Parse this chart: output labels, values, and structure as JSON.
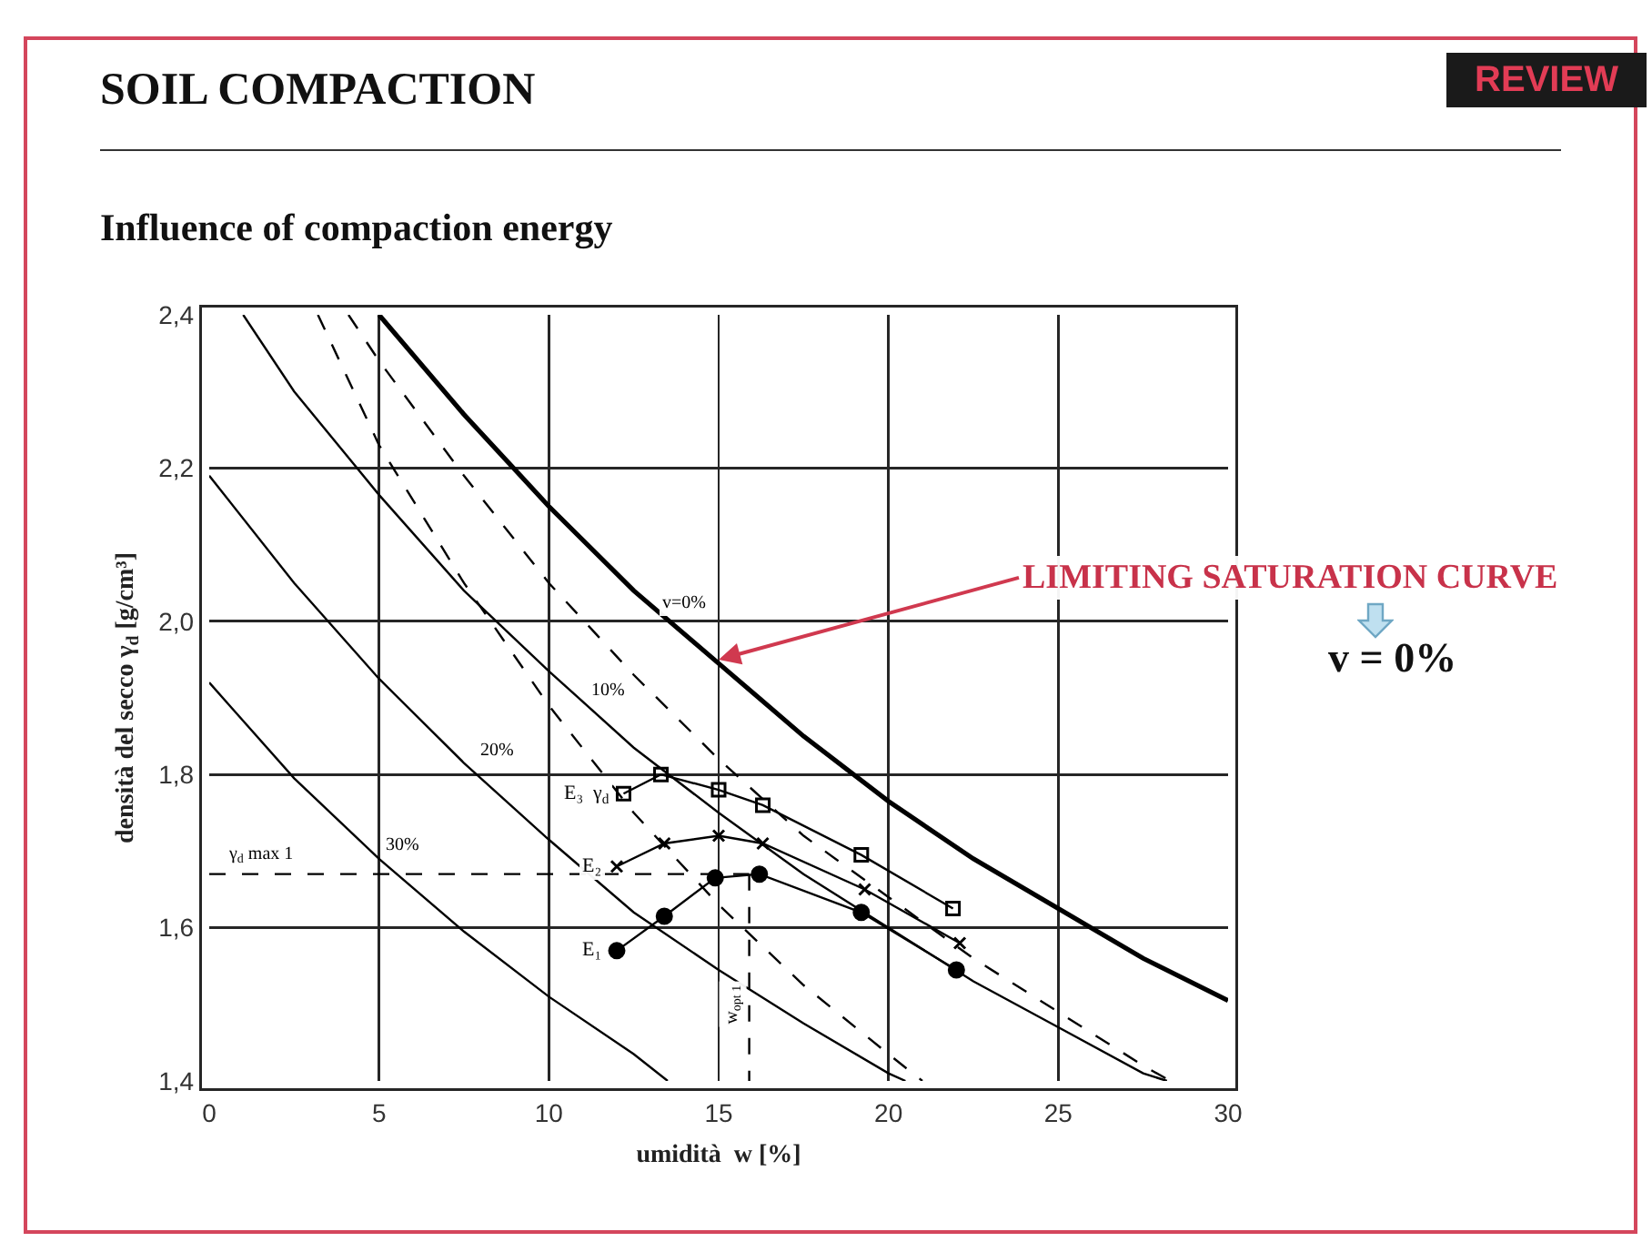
{
  "chart_data": {
    "type": "line",
    "title": "SOIL COMPACTION",
    "subtitle": "Influence of compaction energy",
    "xlabel": "umidità  w [%]",
    "ylabel": "densità del secco γ$_{d}$ [g/cm³]",
    "xlim": [
      0,
      30
    ],
    "xticks": [
      0,
      5,
      10,
      15,
      20,
      25,
      30
    ],
    "ylim": [
      1.4,
      2.4
    ],
    "yticks": [
      {
        "value": 1.4,
        "label": "1,4"
      },
      {
        "value": 1.6,
        "label": "1,6"
      },
      {
        "value": 1.8,
        "label": "1,8"
      },
      {
        "value": 2.0,
        "label": "2,0"
      },
      {
        "value": 2.2,
        "label": "2,2"
      },
      {
        "value": 2.4,
        "label": "2,4"
      }
    ],
    "grid": true,
    "series": [
      {
        "name": "v=0%",
        "color": "#000000",
        "line_style": "solid",
        "marker": "none",
        "x": [
          5,
          7.5,
          10,
          12.5,
          15,
          17.5,
          20,
          22.5,
          25,
          27.5,
          30
        ],
        "values": [
          2.4,
          2.27,
          2.15,
          2.04,
          1.945,
          1.85,
          1.765,
          1.69,
          1.625,
          1.56,
          1.505
        ]
      },
      {
        "name": "10%",
        "color": "#000000",
        "line_style": "solid",
        "marker": "none",
        "x": [
          1,
          2.5,
          5,
          7.5,
          10,
          12.5,
          15,
          17.5,
          20,
          22.5,
          25,
          27.5,
          28.2
        ],
        "values": [
          2.4,
          2.3,
          2.165,
          2.04,
          1.935,
          1.835,
          1.75,
          1.67,
          1.6,
          1.53,
          1.47,
          1.41,
          1.4
        ]
      },
      {
        "name": "20%",
        "color": "#000000",
        "line_style": "solid",
        "marker": "none",
        "x": [
          0,
          2.5,
          5,
          7.5,
          10,
          12.5,
          15,
          17.5,
          20,
          20.5
        ],
        "values": [
          2.19,
          2.05,
          1.925,
          1.815,
          1.715,
          1.62,
          1.545,
          1.475,
          1.41,
          1.4
        ]
      },
      {
        "name": "30%",
        "color": "#000000",
        "line_style": "solid",
        "marker": "none",
        "x": [
          0,
          2.5,
          5,
          7.5,
          10,
          12.5,
          13.5
        ],
        "values": [
          1.92,
          1.795,
          1.69,
          1.595,
          1.51,
          1.435,
          1.4
        ]
      },
      {
        "color": "#000000",
        "line_style": "dashed",
        "marker": "none",
        "x": [
          3.2,
          5,
          7.5,
          10,
          12.5,
          15,
          17.5,
          20,
          21
        ],
        "values": [
          2.4,
          2.23,
          2.05,
          1.89,
          1.75,
          1.63,
          1.525,
          1.435,
          1.4
        ]
      },
      {
        "color": "#000000",
        "line_style": "dashed",
        "marker": "none",
        "x": [
          4.1,
          5,
          7.5,
          10,
          12.5,
          15,
          17.5,
          20,
          22.5,
          25,
          27.5,
          28.3
        ],
        "values": [
          2.4,
          2.34,
          2.19,
          2.05,
          1.93,
          1.82,
          1.72,
          1.64,
          1.56,
          1.49,
          1.42,
          1.4
        ]
      },
      {
        "name": "E₃  γ$_{d}$",
        "color": "#000000",
        "line_style": "solid",
        "marker": "square",
        "x": [
          12.2,
          13.3,
          15.0,
          16.3,
          19.2,
          21.9
        ],
        "values": [
          1.775,
          1.8,
          1.78,
          1.76,
          1.695,
          1.625
        ]
      },
      {
        "name": "E₂",
        "color": "#000000",
        "line_style": "solid",
        "marker": "cross",
        "x": [
          12.0,
          13.4,
          15.0,
          16.3,
          19.3,
          22.1
        ],
        "values": [
          1.68,
          1.71,
          1.72,
          1.71,
          1.65,
          1.58
        ]
      },
      {
        "name": "E₁",
        "color": "#000000",
        "line_style": "solid",
        "marker": "circle",
        "x": [
          12.0,
          13.4,
          14.9,
          16.2,
          19.2,
          22.0
        ],
        "values": [
          1.57,
          1.615,
          1.665,
          1.67,
          1.62,
          1.545
        ]
      },
      {
        "name": "γ$_{d}$ max 1",
        "color": "#000000",
        "line_style": "dashed",
        "marker": "none",
        "x": [
          0,
          15.9
        ],
        "values": [
          1.67,
          1.67
        ]
      },
      {
        "name": "w$_{opt 1}$",
        "color": "#000000",
        "line_style": "dashed",
        "marker": "none",
        "x": [
          15.9,
          15.9
        ],
        "values": [
          1.67,
          1.4
        ]
      }
    ],
    "annotations": [
      "REVIEW",
      "v = 0%",
      {
        "text": "LIMITING SATURATION CURVE",
        "x": 15,
        "y": 1.95
      }
    ]
  }
}
